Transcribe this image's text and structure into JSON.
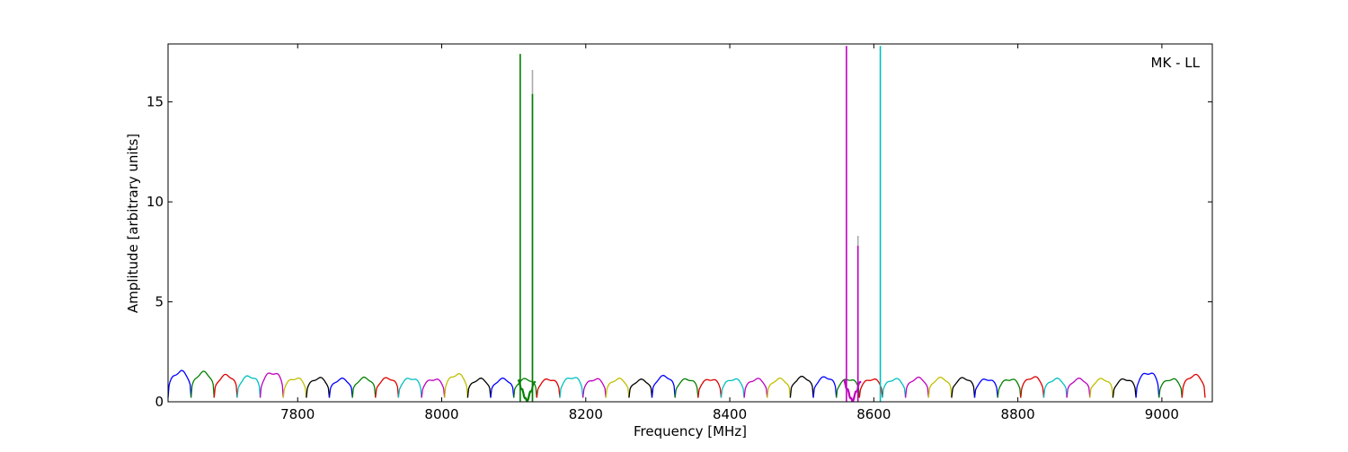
{
  "chart_data": {
    "type": "line",
    "title": "",
    "annotation": "MK - LL",
    "xlabel": "Frequency [MHz]",
    "ylabel": "Amplitude [arbitrary units]",
    "xlim": [
      7620,
      9070
    ],
    "ylim": [
      0,
      17.9
    ],
    "x_ticks": [
      7800,
      8000,
      8200,
      8400,
      8600,
      8800,
      9000
    ],
    "y_ticks": [
      0,
      5,
      10,
      15
    ],
    "grid": false,
    "channel_width_mhz": 32,
    "channel_start_mhz": 7620,
    "channel_count": 45,
    "color_cycle": [
      "#0000ff",
      "#008000",
      "#dd0000",
      "#00bfbf",
      "#bf00bf",
      "#bfbf00",
      "#000000"
    ],
    "baseline": {
      "peak_amplitude": [
        1.6,
        1.55,
        1.4,
        1.35,
        1.55,
        1.25,
        1.25,
        1.2,
        1.25,
        1.25,
        1.25,
        1.2,
        1.45,
        1.2,
        1.2,
        1.2,
        1.2,
        1.3,
        1.2,
        1.2,
        1.15,
        1.35,
        1.2,
        1.2,
        1.2,
        1.2,
        1.2,
        1.3,
        1.3,
        1.2,
        1.2,
        1.2,
        1.25,
        1.25,
        1.25,
        1.2,
        1.2,
        1.3,
        1.2,
        1.2,
        1.2,
        1.2,
        1.55,
        1.2,
        1.4
      ],
      "dip_amplitude": 0.2
    },
    "spikes": [
      {
        "x": 8109,
        "value": 17.4,
        "color": "#008000"
      },
      {
        "x": 8126,
        "value": 16.6,
        "color": "#aaaaaa"
      },
      {
        "x": 8126,
        "value": 15.4,
        "color": "#008000"
      },
      {
        "x": 8562,
        "value": 17.8,
        "color": "#bf00bf"
      },
      {
        "x": 8578,
        "value": 8.3,
        "color": "#aaaaaa"
      },
      {
        "x": 8578,
        "value": 7.8,
        "color": "#bf00bf"
      },
      {
        "x": 8609,
        "value": 17.8,
        "color": "#00bfbf"
      }
    ],
    "notches": [
      {
        "x": 8118,
        "width": 24,
        "color": "#008000"
      },
      {
        "x": 8570,
        "width": 24,
        "color": "#bf00bf"
      }
    ]
  }
}
